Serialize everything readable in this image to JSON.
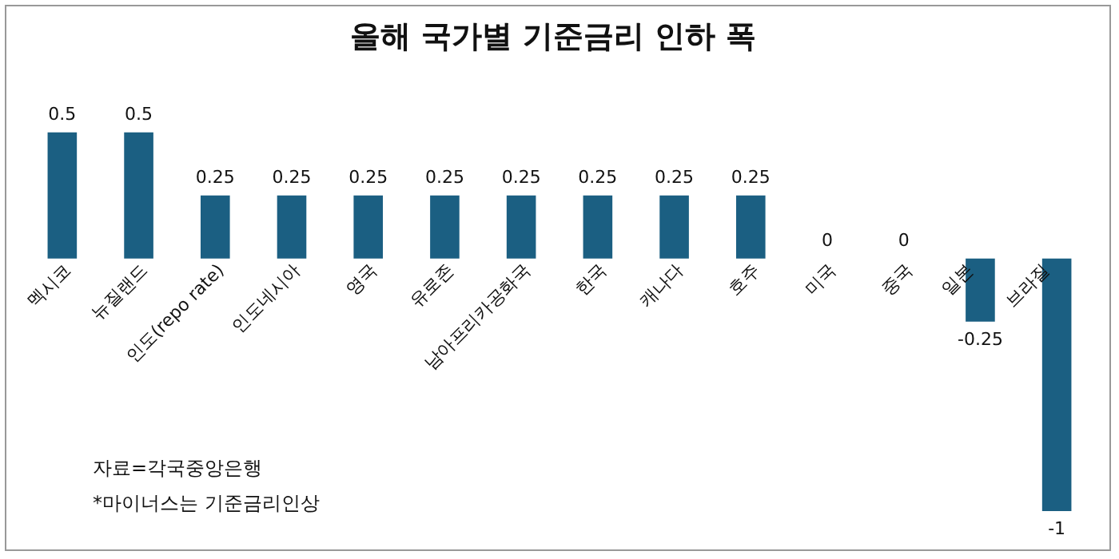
{
  "chart_data": {
    "type": "bar",
    "title": "올해 국가별 기준금리 인하 폭",
    "categories": [
      "멕시코",
      "뉴질랜드",
      "인도(repo rate)",
      "인도네시아",
      "영국",
      "유로존",
      "남아프리카공화국",
      "한국",
      "캐나다",
      "호주",
      "미국",
      "중국",
      "일본",
      "브라질"
    ],
    "values": [
      0.5,
      0.5,
      0.25,
      0.25,
      0.25,
      0.25,
      0.25,
      0.25,
      0.25,
      0.25,
      0,
      0,
      -0.25,
      -1
    ],
    "color": "#1b5f82",
    "data_labels": true,
    "grid": false,
    "legend": false,
    "annotations": [
      "자료=각국중앙은행",
      "*마이너스는 기준금리인상"
    ]
  }
}
